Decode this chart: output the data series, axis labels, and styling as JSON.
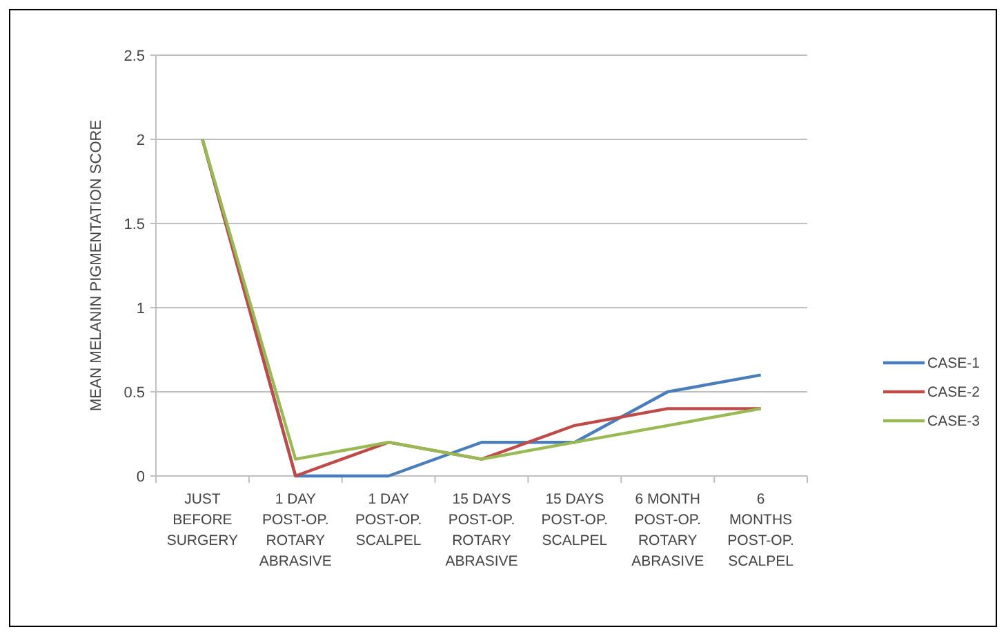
{
  "chart_data": {
    "type": "line",
    "ylabel": "MEAN MELANIN PIGMENTATION SCORE",
    "categories": [
      "JUST BEFORE SURGERY",
      "1 DAY POST-OP. ROTARY ABRASIVE",
      "1 DAY POST-OP. SCALPEL",
      "15 DAYS POST-OP. ROTARY ABRASIVE",
      "15 DAYS POST-OP. SCALPEL",
      "6 MONTH POST-OP. ROTARY ABRASIVE",
      "6 MONTHS POST-OP. SCALPEL"
    ],
    "series": [
      {
        "name": "CASE-1",
        "color": "#4a7ebb",
        "values": [
          2,
          0,
          0,
          0.2,
          0.2,
          0.5,
          0.6
        ]
      },
      {
        "name": "CASE-2",
        "color": "#be4b48",
        "values": [
          2,
          0,
          0.2,
          0.1,
          0.3,
          0.4,
          0.4
        ]
      },
      {
        "name": "CASE-3",
        "color": "#98b954",
        "values": [
          2,
          0.1,
          0.2,
          0.1,
          0.2,
          0.3,
          0.4
        ]
      }
    ],
    "ylim": [
      0,
      2.5
    ],
    "yticks": [
      0,
      0.5,
      1,
      1.5,
      2,
      2.5
    ],
    "grid": "y",
    "legend": "right",
    "marker": "none",
    "line_style": "solid"
  }
}
